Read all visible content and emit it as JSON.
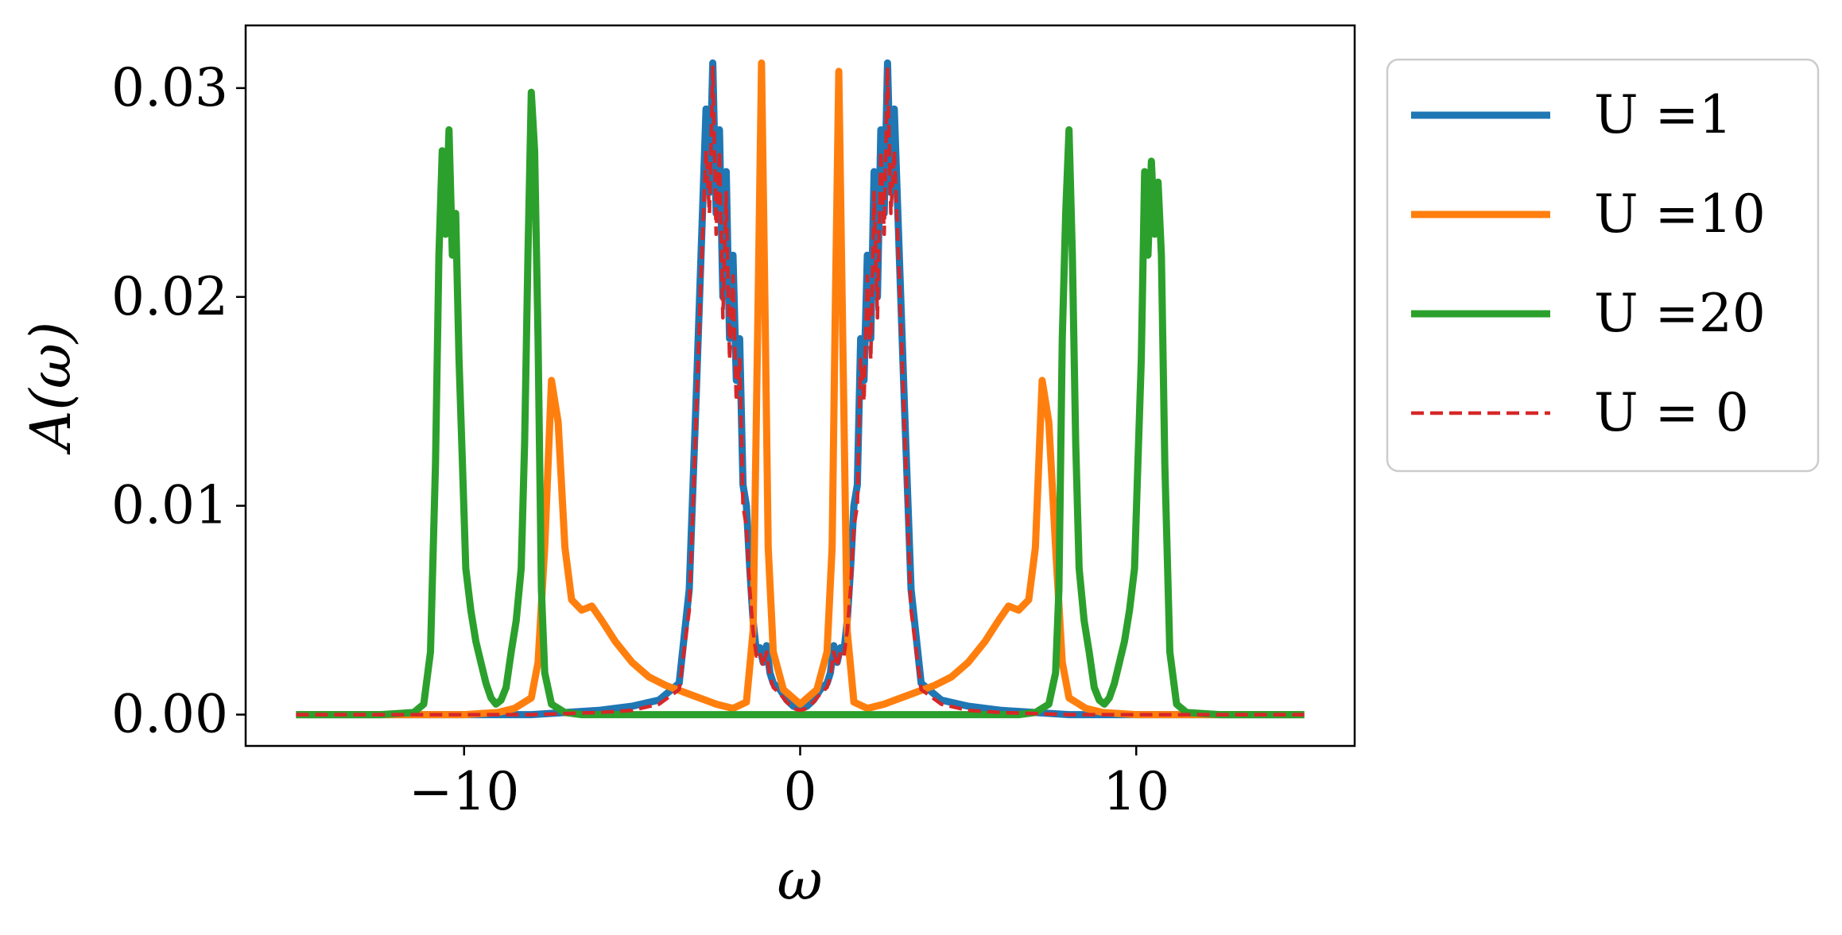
{
  "chart_data": {
    "type": "line",
    "title": "",
    "xlabel": "ω",
    "ylabel": "A(ω)",
    "xlim": [
      -16.5,
      16.5
    ],
    "ylim": [
      -0.0015,
      0.033
    ],
    "x_ticks": [
      -10,
      0,
      10
    ],
    "x_tick_labels": [
      "−10",
      "0",
      "10"
    ],
    "y_ticks": [
      0.0,
      0.01,
      0.02,
      0.03
    ],
    "y_tick_labels": [
      "0.00",
      "0.01",
      "0.02",
      "0.03"
    ],
    "grid": false,
    "legend_position": "outside-right-top",
    "series": [
      {
        "name": "U =1",
        "color": "#1f77b4",
        "style": "solid",
        "points": [
          [
            -15.0,
            0.0
          ],
          [
            -8.0,
            0.0
          ],
          [
            -6.0,
            0.0002
          ],
          [
            -5.0,
            0.0004
          ],
          [
            -4.2,
            0.0007
          ],
          [
            -3.6,
            0.0015
          ],
          [
            -3.3,
            0.006
          ],
          [
            -3.1,
            0.015
          ],
          [
            -2.95,
            0.022
          ],
          [
            -2.8,
            0.029
          ],
          [
            -2.7,
            0.025
          ],
          [
            -2.6,
            0.0312
          ],
          [
            -2.5,
            0.024
          ],
          [
            -2.4,
            0.028
          ],
          [
            -2.3,
            0.02
          ],
          [
            -2.2,
            0.026
          ],
          [
            -2.1,
            0.018
          ],
          [
            -2.0,
            0.022
          ],
          [
            -1.9,
            0.016
          ],
          [
            -1.8,
            0.018
          ],
          [
            -1.7,
            0.011
          ],
          [
            -1.6,
            0.01
          ],
          [
            -1.5,
            0.007
          ],
          [
            -1.4,
            0.0045
          ],
          [
            -1.3,
            0.003
          ],
          [
            -1.2,
            0.0032
          ],
          [
            -1.1,
            0.0025
          ],
          [
            -1.0,
            0.0033
          ],
          [
            -0.9,
            0.002
          ],
          [
            -0.8,
            0.0015
          ],
          [
            -0.6,
            0.0012
          ],
          [
            -0.4,
            0.0007
          ],
          [
            -0.2,
            0.0004
          ],
          [
            0.0,
            0.0003
          ],
          [
            0.2,
            0.0004
          ],
          [
            0.4,
            0.0007
          ],
          [
            0.6,
            0.0012
          ],
          [
            0.8,
            0.0015
          ],
          [
            0.9,
            0.002
          ],
          [
            1.0,
            0.0033
          ],
          [
            1.1,
            0.0025
          ],
          [
            1.2,
            0.0032
          ],
          [
            1.3,
            0.003
          ],
          [
            1.4,
            0.0045
          ],
          [
            1.5,
            0.007
          ],
          [
            1.6,
            0.01
          ],
          [
            1.7,
            0.011
          ],
          [
            1.8,
            0.018
          ],
          [
            1.9,
            0.016
          ],
          [
            2.0,
            0.022
          ],
          [
            2.1,
            0.018
          ],
          [
            2.2,
            0.026
          ],
          [
            2.3,
            0.02
          ],
          [
            2.4,
            0.028
          ],
          [
            2.5,
            0.024
          ],
          [
            2.6,
            0.0312
          ],
          [
            2.7,
            0.025
          ],
          [
            2.8,
            0.029
          ],
          [
            2.95,
            0.022
          ],
          [
            3.1,
            0.015
          ],
          [
            3.3,
            0.006
          ],
          [
            3.6,
            0.0015
          ],
          [
            4.2,
            0.0007
          ],
          [
            5.0,
            0.0004
          ],
          [
            6.0,
            0.0002
          ],
          [
            8.0,
            0.0
          ],
          [
            15.0,
            0.0
          ]
        ]
      },
      {
        "name": "U =10",
        "color": "#ff7f0e",
        "style": "solid",
        "points": [
          [
            -15.0,
            0.0
          ],
          [
            -10.0,
            0.0
          ],
          [
            -9.0,
            0.0001
          ],
          [
            -8.5,
            0.0003
          ],
          [
            -8.0,
            0.0008
          ],
          [
            -7.8,
            0.0025
          ],
          [
            -7.6,
            0.008
          ],
          [
            -7.4,
            0.016
          ],
          [
            -7.2,
            0.014
          ],
          [
            -7.0,
            0.008
          ],
          [
            -6.8,
            0.0055
          ],
          [
            -6.5,
            0.005
          ],
          [
            -6.2,
            0.0052
          ],
          [
            -5.9,
            0.0045
          ],
          [
            -5.5,
            0.0035
          ],
          [
            -5.0,
            0.0025
          ],
          [
            -4.5,
            0.0018
          ],
          [
            -4.0,
            0.0014
          ],
          [
            -3.5,
            0.0011
          ],
          [
            -3.0,
            0.0008
          ],
          [
            -2.5,
            0.0005
          ],
          [
            -2.0,
            0.0003
          ],
          [
            -1.6,
            0.0006
          ],
          [
            -1.4,
            0.004
          ],
          [
            -1.25,
            0.02
          ],
          [
            -1.15,
            0.0312
          ],
          [
            -1.05,
            0.02
          ],
          [
            -0.95,
            0.008
          ],
          [
            -0.8,
            0.003
          ],
          [
            -0.5,
            0.0012
          ],
          [
            0.0,
            0.0005
          ],
          [
            0.5,
            0.0012
          ],
          [
            0.8,
            0.003
          ],
          [
            0.95,
            0.008
          ],
          [
            1.05,
            0.02
          ],
          [
            1.15,
            0.0308
          ],
          [
            1.25,
            0.02
          ],
          [
            1.4,
            0.004
          ],
          [
            1.6,
            0.0006
          ],
          [
            2.0,
            0.0003
          ],
          [
            2.5,
            0.0005
          ],
          [
            3.0,
            0.0008
          ],
          [
            3.5,
            0.0011
          ],
          [
            4.0,
            0.0014
          ],
          [
            4.5,
            0.0018
          ],
          [
            5.0,
            0.0025
          ],
          [
            5.5,
            0.0035
          ],
          [
            5.9,
            0.0045
          ],
          [
            6.2,
            0.0052
          ],
          [
            6.5,
            0.005
          ],
          [
            6.8,
            0.0055
          ],
          [
            7.0,
            0.008
          ],
          [
            7.2,
            0.016
          ],
          [
            7.4,
            0.014
          ],
          [
            7.6,
            0.008
          ],
          [
            7.8,
            0.0025
          ],
          [
            8.0,
            0.0008
          ],
          [
            8.5,
            0.0003
          ],
          [
            9.0,
            0.0001
          ],
          [
            10.0,
            0.0
          ],
          [
            15.0,
            0.0
          ]
        ]
      },
      {
        "name": "U =20",
        "color": "#2ca02c",
        "style": "solid",
        "points": [
          [
            -15.0,
            0.0
          ],
          [
            -12.5,
            0.0
          ],
          [
            -11.5,
            0.0001
          ],
          [
            -11.2,
            0.0005
          ],
          [
            -11.0,
            0.003
          ],
          [
            -10.85,
            0.012
          ],
          [
            -10.75,
            0.022
          ],
          [
            -10.65,
            0.027
          ],
          [
            -10.55,
            0.023
          ],
          [
            -10.45,
            0.028
          ],
          [
            -10.35,
            0.022
          ],
          [
            -10.25,
            0.024
          ],
          [
            -10.15,
            0.017
          ],
          [
            -10.05,
            0.012
          ],
          [
            -9.95,
            0.007
          ],
          [
            -9.8,
            0.005
          ],
          [
            -9.65,
            0.0035
          ],
          [
            -9.5,
            0.0025
          ],
          [
            -9.35,
            0.0015
          ],
          [
            -9.2,
            0.0008
          ],
          [
            -9.05,
            0.0005
          ],
          [
            -8.9,
            0.0007
          ],
          [
            -8.75,
            0.0013
          ],
          [
            -8.6,
            0.003
          ],
          [
            -8.45,
            0.0045
          ],
          [
            -8.3,
            0.007
          ],
          [
            -8.2,
            0.013
          ],
          [
            -8.1,
            0.022
          ],
          [
            -8.0,
            0.0298
          ],
          [
            -7.9,
            0.027
          ],
          [
            -7.8,
            0.018
          ],
          [
            -7.7,
            0.006
          ],
          [
            -7.6,
            0.002
          ],
          [
            -7.4,
            0.0005
          ],
          [
            -7.0,
            0.0001
          ],
          [
            -6.5,
            0.0
          ],
          [
            6.5,
            0.0
          ],
          [
            7.0,
            0.0001
          ],
          [
            7.4,
            0.0005
          ],
          [
            7.6,
            0.002
          ],
          [
            7.7,
            0.006
          ],
          [
            7.8,
            0.018
          ],
          [
            7.9,
            0.024
          ],
          [
            8.0,
            0.028
          ],
          [
            8.1,
            0.022
          ],
          [
            8.2,
            0.013
          ],
          [
            8.3,
            0.007
          ],
          [
            8.45,
            0.0045
          ],
          [
            8.6,
            0.003
          ],
          [
            8.75,
            0.0013
          ],
          [
            8.9,
            0.0007
          ],
          [
            9.05,
            0.0005
          ],
          [
            9.2,
            0.0008
          ],
          [
            9.35,
            0.0015
          ],
          [
            9.5,
            0.0025
          ],
          [
            9.65,
            0.0035
          ],
          [
            9.8,
            0.005
          ],
          [
            9.95,
            0.007
          ],
          [
            10.05,
            0.012
          ],
          [
            10.15,
            0.017
          ],
          [
            10.25,
            0.026
          ],
          [
            10.35,
            0.022
          ],
          [
            10.45,
            0.0265
          ],
          [
            10.55,
            0.023
          ],
          [
            10.65,
            0.0255
          ],
          [
            10.75,
            0.022
          ],
          [
            10.85,
            0.012
          ],
          [
            11.0,
            0.003
          ],
          [
            11.2,
            0.0005
          ],
          [
            11.5,
            0.0001
          ],
          [
            12.5,
            0.0
          ],
          [
            15.0,
            0.0
          ]
        ]
      },
      {
        "name": "U = 0",
        "color": "#d62728",
        "style": "dashed",
        "points": [
          [
            -15.0,
            0.0
          ],
          [
            -8.0,
            0.0
          ],
          [
            -6.0,
            0.0001
          ],
          [
            -5.0,
            0.0002
          ],
          [
            -4.2,
            0.0005
          ],
          [
            -3.6,
            0.0012
          ],
          [
            -3.3,
            0.005
          ],
          [
            -3.1,
            0.014
          ],
          [
            -2.95,
            0.021
          ],
          [
            -2.8,
            0.027
          ],
          [
            -2.7,
            0.024
          ],
          [
            -2.6,
            0.031
          ],
          [
            -2.5,
            0.023
          ],
          [
            -2.4,
            0.027
          ],
          [
            -2.3,
            0.019
          ],
          [
            -2.2,
            0.025
          ],
          [
            -2.1,
            0.017
          ],
          [
            -2.0,
            0.021
          ],
          [
            -1.9,
            0.015
          ],
          [
            -1.8,
            0.017
          ],
          [
            -1.7,
            0.01
          ],
          [
            -1.6,
            0.009
          ],
          [
            -1.5,
            0.006
          ],
          [
            -1.4,
            0.004
          ],
          [
            -1.3,
            0.0028
          ],
          [
            -1.2,
            0.003
          ],
          [
            -1.1,
            0.0023
          ],
          [
            -1.0,
            0.003
          ],
          [
            -0.9,
            0.0018
          ],
          [
            -0.8,
            0.0013
          ],
          [
            -0.6,
            0.001
          ],
          [
            -0.4,
            0.0006
          ],
          [
            -0.2,
            0.0003
          ],
          [
            0.0,
            0.0002
          ],
          [
            0.2,
            0.0003
          ],
          [
            0.4,
            0.0006
          ],
          [
            0.6,
            0.001
          ],
          [
            0.8,
            0.0013
          ],
          [
            0.9,
            0.0018
          ],
          [
            1.0,
            0.003
          ],
          [
            1.1,
            0.0023
          ],
          [
            1.2,
            0.003
          ],
          [
            1.3,
            0.0028
          ],
          [
            1.4,
            0.004
          ],
          [
            1.5,
            0.006
          ],
          [
            1.6,
            0.009
          ],
          [
            1.7,
            0.01
          ],
          [
            1.8,
            0.017
          ],
          [
            1.9,
            0.015
          ],
          [
            2.0,
            0.021
          ],
          [
            2.1,
            0.017
          ],
          [
            2.2,
            0.025
          ],
          [
            2.3,
            0.019
          ],
          [
            2.4,
            0.027
          ],
          [
            2.5,
            0.023
          ],
          [
            2.6,
            0.031
          ],
          [
            2.7,
            0.024
          ],
          [
            2.8,
            0.027
          ],
          [
            2.95,
            0.021
          ],
          [
            3.1,
            0.014
          ],
          [
            3.3,
            0.005
          ],
          [
            3.6,
            0.0012
          ],
          [
            4.2,
            0.0005
          ],
          [
            5.0,
            0.0002
          ],
          [
            6.0,
            0.0001
          ],
          [
            8.0,
            0.0
          ],
          [
            15.0,
            0.0
          ]
        ]
      }
    ]
  }
}
